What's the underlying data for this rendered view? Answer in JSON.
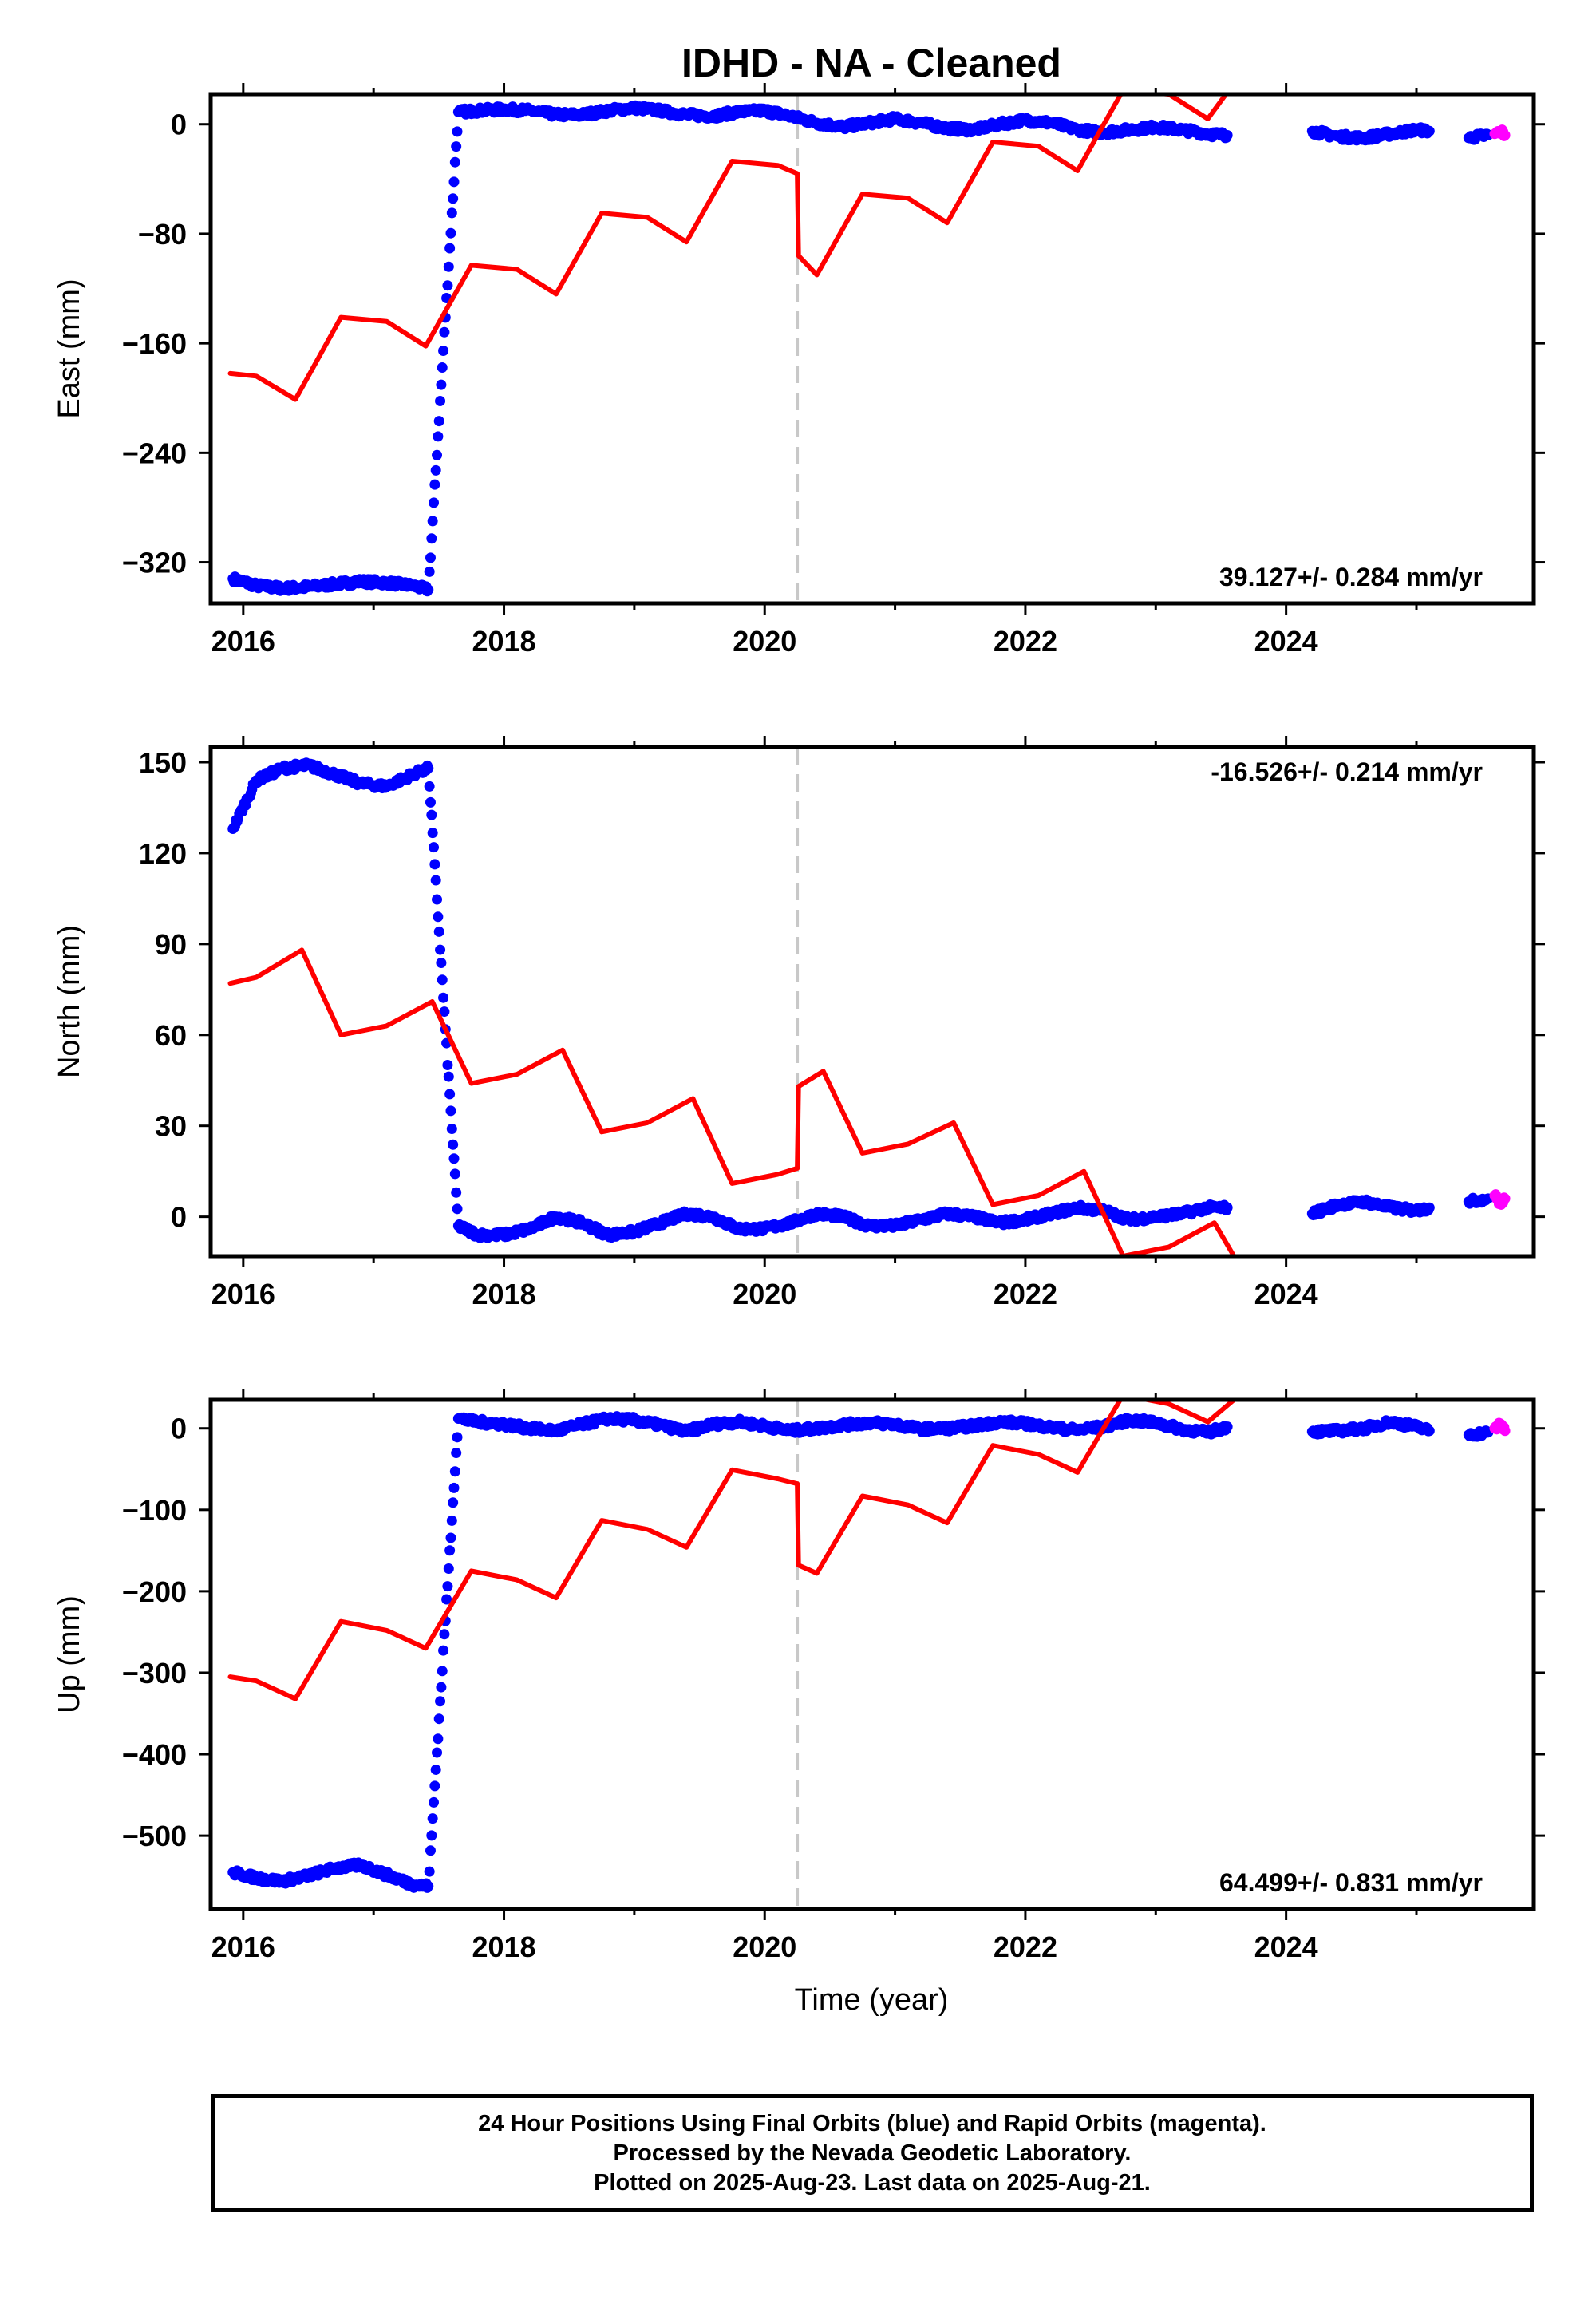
{
  "title": "IDHD  - NA - Cleaned",
  "xlabel": "Time (year)",
  "footer": {
    "line1": "24 Hour Positions Using Final Orbits (blue) and Rapid Orbits (magenta).",
    "line2": "Processed by the Nevada Geodetic Laboratory.",
    "line3": "Plotted on 2025-Aug-23. Last data on 2025-Aug-21."
  },
  "colors": {
    "final": "#0000ff",
    "rapid": "#ff00ff",
    "model": "#ff0000",
    "event": "#c8c8c8"
  },
  "chart_data": [
    {
      "type": "scatter",
      "ylabel": "East (mm)",
      "rate": "39.127+/- 0.284 mm/yr",
      "rate_position": "bottom-right",
      "xlim": [
        2015.75,
        2025.9
      ],
      "ylim": [
        -350,
        22
      ],
      "xticks": [
        2016,
        2018,
        2020,
        2022,
        2024
      ],
      "yticks": [
        0,
        -80,
        -160,
        -240,
        -320
      ],
      "event_line_x": 2020.25,
      "series": [
        {
          "kind": "final",
          "points": [
            [
              2015.92,
              -332
            ],
            [
              2016.1,
              -337
            ],
            [
              2016.3,
              -339
            ],
            [
              2016.5,
              -338
            ],
            [
              2016.7,
              -336
            ],
            [
              2016.9,
              -334
            ],
            [
              2017.1,
              -335
            ],
            [
              2017.3,
              -337
            ],
            [
              2017.42,
              -340
            ],
            [
              2017.65,
              9
            ],
            [
              2017.8,
              10
            ],
            [
              2018.0,
              11
            ],
            [
              2018.2,
              10
            ],
            [
              2018.4,
              7
            ],
            [
              2018.6,
              7
            ],
            [
              2018.8,
              10
            ],
            [
              2019.0,
              12
            ],
            [
              2019.2,
              10
            ],
            [
              2019.4,
              7
            ],
            [
              2019.6,
              6
            ],
            [
              2019.8,
              9
            ],
            [
              2020.0,
              10
            ],
            [
              2020.2,
              6
            ],
            [
              2020.4,
              1
            ],
            [
              2020.6,
              -2
            ],
            [
              2020.8,
              1
            ],
            [
              2021.0,
              4
            ],
            [
              2021.2,
              1
            ],
            [
              2021.4,
              -3
            ],
            [
              2021.6,
              -4
            ],
            [
              2021.8,
              0
            ],
            [
              2022.0,
              3
            ],
            [
              2022.2,
              1
            ],
            [
              2022.4,
              -4
            ],
            [
              2022.6,
              -6
            ],
            [
              2022.8,
              -4
            ],
            [
              2023.0,
              -2
            ],
            [
              2023.2,
              -4
            ],
            [
              2023.4,
              -7
            ],
            [
              2023.55,
              -8
            ],
            [
              2024.2,
              -5
            ],
            [
              2024.4,
              -9
            ],
            [
              2024.6,
              -10
            ],
            [
              2024.8,
              -7
            ],
            [
              2025.0,
              -4
            ],
            [
              2025.1,
              -5
            ],
            [
              2025.4,
              -10
            ],
            [
              2025.55,
              -8
            ]
          ]
        },
        {
          "kind": "rapid",
          "points": [
            [
              2025.6,
              -7
            ],
            [
              2025.65,
              -5
            ],
            [
              2025.68,
              -8
            ]
          ]
        },
        {
          "kind": "model",
          "points": [
            [
              2015.9,
              -182
            ],
            [
              2016.1,
              -184
            ],
            [
              2016.4,
              -201
            ],
            [
              2016.75,
              -141
            ],
            [
              2017.1,
              -144
            ],
            [
              2017.4,
              -162
            ],
            [
              2017.75,
              -103
            ],
            [
              2018.1,
              -106
            ],
            [
              2018.4,
              -124
            ],
            [
              2018.75,
              -65
            ],
            [
              2019.1,
              -68
            ],
            [
              2019.4,
              -86
            ],
            [
              2019.75,
              -27
            ],
            [
              2020.1,
              -30
            ],
            [
              2020.25,
              -36
            ],
            [
              2020.26,
              -96
            ],
            [
              2020.4,
              -110
            ],
            [
              2020.75,
              -51
            ],
            [
              2021.1,
              -54
            ],
            [
              2021.4,
              -72
            ],
            [
              2021.75,
              -13
            ],
            [
              2022.1,
              -16
            ],
            [
              2022.4,
              -34
            ],
            [
              2022.75,
              25
            ],
            [
              2023.1,
              22
            ],
            [
              2023.4,
              4
            ],
            [
              2023.6,
              30
            ]
          ]
        }
      ]
    },
    {
      "type": "scatter",
      "ylabel": "North (mm)",
      "rate": "-16.526+/- 0.214 mm/yr",
      "rate_position": "top-right",
      "xlim": [
        2015.75,
        2025.9
      ],
      "ylim": [
        -13,
        155
      ],
      "xticks": [
        2016,
        2018,
        2020,
        2022,
        2024
      ],
      "yticks": [
        150,
        120,
        90,
        60,
        30,
        0
      ],
      "event_line_x": 2020.25,
      "series": [
        {
          "kind": "final",
          "points": [
            [
              2015.92,
              128
            ],
            [
              2016.1,
              144
            ],
            [
              2016.3,
              148
            ],
            [
              2016.5,
              149
            ],
            [
              2016.7,
              146
            ],
            [
              2016.9,
              143
            ],
            [
              2017.1,
              142
            ],
            [
              2017.3,
              146
            ],
            [
              2017.42,
              148
            ],
            [
              2017.65,
              -3
            ],
            [
              2017.8,
              -6
            ],
            [
              2018.0,
              -6
            ],
            [
              2018.2,
              -4
            ],
            [
              2018.4,
              0
            ],
            [
              2018.6,
              -2
            ],
            [
              2018.8,
              -6
            ],
            [
              2019.0,
              -5
            ],
            [
              2019.2,
              -2
            ],
            [
              2019.4,
              1
            ],
            [
              2019.6,
              0
            ],
            [
              2019.8,
              -4
            ],
            [
              2020.0,
              -4
            ],
            [
              2020.2,
              -2
            ],
            [
              2020.4,
              1
            ],
            [
              2020.6,
              0
            ],
            [
              2020.8,
              -3
            ],
            [
              2021.0,
              -3
            ],
            [
              2021.2,
              -1
            ],
            [
              2021.4,
              1
            ],
            [
              2021.6,
              0
            ],
            [
              2021.8,
              -2
            ],
            [
              2022.0,
              -1
            ],
            [
              2022.2,
              1
            ],
            [
              2022.4,
              3
            ],
            [
              2022.6,
              2
            ],
            [
              2022.8,
              -1
            ],
            [
              2023.0,
              0
            ],
            [
              2023.2,
              1
            ],
            [
              2023.4,
              3
            ],
            [
              2023.55,
              3
            ],
            [
              2024.2,
              1
            ],
            [
              2024.4,
              4
            ],
            [
              2024.6,
              5
            ],
            [
              2024.8,
              3
            ],
            [
              2025.0,
              2
            ],
            [
              2025.1,
              3
            ],
            [
              2025.4,
              5
            ],
            [
              2025.55,
              6
            ]
          ]
        },
        {
          "kind": "rapid",
          "points": [
            [
              2025.6,
              7
            ],
            [
              2025.65,
              4
            ],
            [
              2025.68,
              6
            ]
          ]
        },
        {
          "kind": "model",
          "points": [
            [
              2015.9,
              77
            ],
            [
              2016.1,
              79
            ],
            [
              2016.45,
              88
            ],
            [
              2016.75,
              60
            ],
            [
              2017.1,
              63
            ],
            [
              2017.45,
              71
            ],
            [
              2017.75,
              44
            ],
            [
              2018.1,
              47
            ],
            [
              2018.45,
              55
            ],
            [
              2018.75,
              28
            ],
            [
              2019.1,
              31
            ],
            [
              2019.45,
              39
            ],
            [
              2019.75,
              11
            ],
            [
              2020.1,
              14
            ],
            [
              2020.25,
              16
            ],
            [
              2020.26,
              43
            ],
            [
              2020.45,
              48
            ],
            [
              2020.75,
              21
            ],
            [
              2021.1,
              24
            ],
            [
              2021.45,
              31
            ],
            [
              2021.75,
              4
            ],
            [
              2022.1,
              7
            ],
            [
              2022.45,
              15
            ],
            [
              2022.75,
              -13
            ],
            [
              2023.1,
              -10
            ],
            [
              2023.45,
              -2
            ],
            [
              2023.6,
              -13
            ]
          ]
        }
      ]
    },
    {
      "type": "scatter",
      "ylabel": "Up (mm)",
      "rate": "64.499+/- 0.831 mm/yr",
      "rate_position": "bottom-right",
      "xlim": [
        2015.75,
        2025.9
      ],
      "ylim": [
        -590,
        35
      ],
      "xticks": [
        2016,
        2018,
        2020,
        2022,
        2024
      ],
      "yticks": [
        0,
        -100,
        -200,
        -300,
        -400,
        -500
      ],
      "event_line_x": 2020.25,
      "series": [
        {
          "kind": "final",
          "points": [
            [
              2015.92,
              -545
            ],
            [
              2016.1,
              -552
            ],
            [
              2016.3,
              -556
            ],
            [
              2016.5,
              -549
            ],
            [
              2016.7,
              -540
            ],
            [
              2016.9,
              -536
            ],
            [
              2017.1,
              -548
            ],
            [
              2017.3,
              -560
            ],
            [
              2017.42,
              -562
            ],
            [
              2017.65,
              12
            ],
            [
              2017.8,
              8
            ],
            [
              2018.0,
              5
            ],
            [
              2018.2,
              0
            ],
            [
              2018.4,
              -3
            ],
            [
              2018.6,
              5
            ],
            [
              2018.8,
              12
            ],
            [
              2019.0,
              10
            ],
            [
              2019.2,
              4
            ],
            [
              2019.4,
              -4
            ],
            [
              2019.6,
              5
            ],
            [
              2019.8,
              8
            ],
            [
              2020.0,
              3
            ],
            [
              2020.2,
              -3
            ],
            [
              2020.4,
              0
            ],
            [
              2020.6,
              4
            ],
            [
              2020.8,
              7
            ],
            [
              2021.0,
              5
            ],
            [
              2021.2,
              -1
            ],
            [
              2021.4,
              0
            ],
            [
              2021.6,
              3
            ],
            [
              2021.8,
              8
            ],
            [
              2022.0,
              6
            ],
            [
              2022.2,
              1
            ],
            [
              2022.4,
              -2
            ],
            [
              2022.6,
              2
            ],
            [
              2022.8,
              10
            ],
            [
              2023.0,
              7
            ],
            [
              2023.2,
              -1
            ],
            [
              2023.4,
              -5
            ],
            [
              2023.55,
              2
            ],
            [
              2024.2,
              -4
            ],
            [
              2024.4,
              -3
            ],
            [
              2024.6,
              0
            ],
            [
              2024.8,
              8
            ],
            [
              2025.0,
              2
            ],
            [
              2025.1,
              -3
            ],
            [
              2025.4,
              -8
            ],
            [
              2025.55,
              -5
            ]
          ]
        },
        {
          "kind": "rapid",
          "points": [
            [
              2025.6,
              0
            ],
            [
              2025.65,
              5
            ],
            [
              2025.68,
              -3
            ]
          ]
        },
        {
          "kind": "model",
          "points": [
            [
              2015.9,
              -305
            ],
            [
              2016.1,
              -310
            ],
            [
              2016.4,
              -332
            ],
            [
              2016.75,
              -237
            ],
            [
              2017.1,
              -248
            ],
            [
              2017.4,
              -270
            ],
            [
              2017.75,
              -175
            ],
            [
              2018.1,
              -186
            ],
            [
              2018.4,
              -208
            ],
            [
              2018.75,
              -113
            ],
            [
              2019.1,
              -124
            ],
            [
              2019.4,
              -146
            ],
            [
              2019.75,
              -51
            ],
            [
              2020.1,
              -62
            ],
            [
              2020.25,
              -68
            ],
            [
              2020.26,
              -168
            ],
            [
              2020.4,
              -178
            ],
            [
              2020.75,
              -83
            ],
            [
              2021.1,
              -94
            ],
            [
              2021.4,
              -116
            ],
            [
              2021.75,
              -21
            ],
            [
              2022.1,
              -32
            ],
            [
              2022.4,
              -54
            ],
            [
              2022.75,
              41
            ],
            [
              2023.1,
              30
            ],
            [
              2023.4,
              8
            ],
            [
              2023.6,
              35
            ]
          ]
        }
      ]
    }
  ]
}
